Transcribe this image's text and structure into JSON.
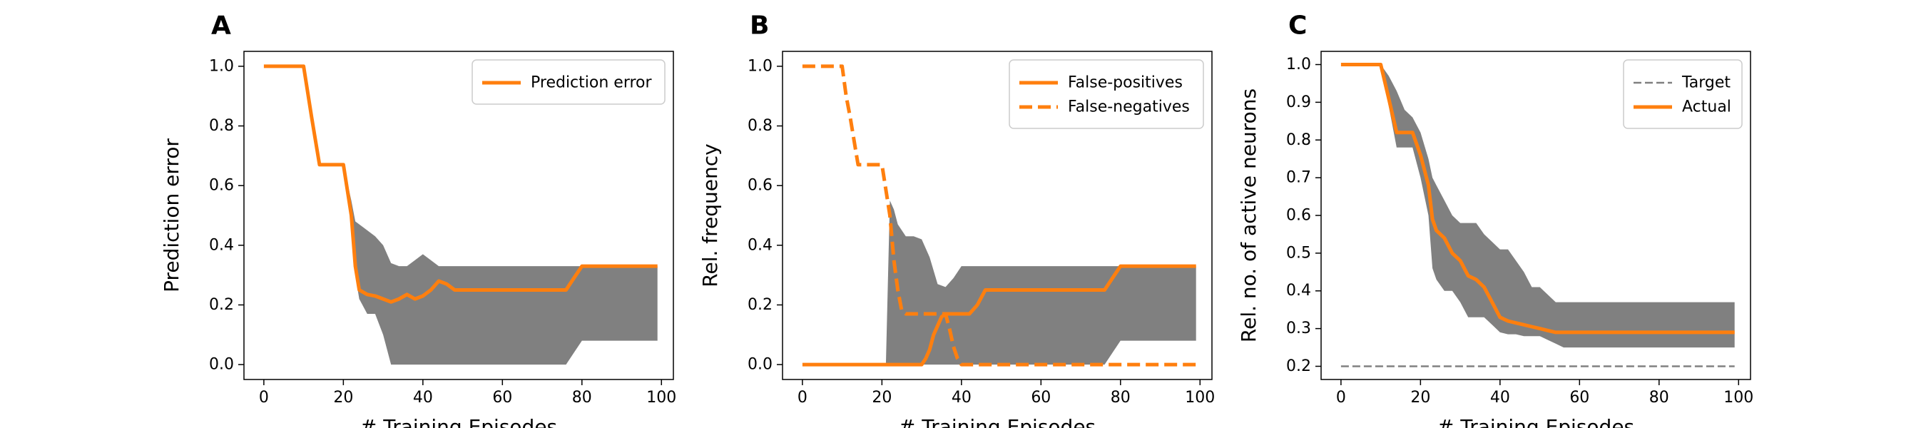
{
  "chart_data": [
    {
      "type": "line",
      "panel_label": "A",
      "title": "",
      "xlabel": "# Training Episodes",
      "ylabel": "Prediction error",
      "xlim": [
        -5,
        103
      ],
      "ylim": [
        -0.05,
        1.05
      ],
      "xticks": [
        0,
        20,
        40,
        60,
        80,
        100
      ],
      "yticks": [
        0.0,
        0.2,
        0.4,
        0.6,
        0.8,
        1.0
      ],
      "ytick_format": 1,
      "legend_position": "upper-right",
      "band": {
        "color": "#808080",
        "x": [
          0,
          10,
          12,
          14,
          16,
          18,
          20,
          22,
          23,
          24,
          26,
          28,
          30,
          32,
          34,
          36,
          38,
          40,
          42,
          44,
          46,
          48,
          50,
          76,
          78,
          80,
          99
        ],
        "upper": [
          1.0,
          1.0,
          0.83,
          0.67,
          0.67,
          0.67,
          0.67,
          0.55,
          0.48,
          0.47,
          0.45,
          0.43,
          0.4,
          0.34,
          0.33,
          0.33,
          0.35,
          0.37,
          0.35,
          0.33,
          0.33,
          0.33,
          0.33,
          0.33,
          0.33,
          0.33,
          0.33
        ],
        "lower": [
          1.0,
          1.0,
          0.83,
          0.67,
          0.67,
          0.67,
          0.67,
          0.5,
          0.3,
          0.22,
          0.17,
          0.17,
          0.1,
          0.0,
          0.0,
          0.0,
          0.0,
          0.0,
          0.0,
          0.0,
          0.0,
          0.0,
          0.0,
          0.0,
          0.04,
          0.08,
          0.08
        ]
      },
      "series": [
        {
          "name": "Prediction error",
          "color": "#ff7f0e",
          "style": "solid",
          "x": [
            0,
            10,
            12,
            14,
            16,
            18,
            20,
            22,
            23,
            24,
            26,
            28,
            30,
            32,
            34,
            36,
            38,
            40,
            42,
            44,
            46,
            48,
            50,
            60,
            70,
            76,
            78,
            80,
            99
          ],
          "y": [
            1.0,
            1.0,
            0.83,
            0.67,
            0.67,
            0.67,
            0.67,
            0.5,
            0.33,
            0.25,
            0.235,
            0.23,
            0.22,
            0.21,
            0.22,
            0.235,
            0.22,
            0.23,
            0.25,
            0.28,
            0.27,
            0.25,
            0.25,
            0.25,
            0.25,
            0.25,
            0.29,
            0.33,
            0.33
          ]
        }
      ]
    },
    {
      "type": "line",
      "panel_label": "B",
      "title": "",
      "xlabel": "# Training Episodes",
      "ylabel": "Rel. frequency",
      "xlim": [
        -5,
        103
      ],
      "ylim": [
        -0.05,
        1.05
      ],
      "xticks": [
        0,
        20,
        40,
        60,
        80,
        100
      ],
      "yticks": [
        0.0,
        0.2,
        0.4,
        0.6,
        0.8,
        1.0
      ],
      "ytick_format": 1,
      "legend_position": "upper-right",
      "band": {
        "color": "#808080",
        "x": [
          0,
          21,
          22,
          23,
          24,
          26,
          28,
          30,
          32,
          34,
          36,
          38,
          40,
          42,
          46,
          50,
          76,
          78,
          80,
          99
        ],
        "upper": [
          0.0,
          0.0,
          0.55,
          0.52,
          0.47,
          0.43,
          0.43,
          0.42,
          0.36,
          0.27,
          0.26,
          0.29,
          0.33,
          0.33,
          0.33,
          0.33,
          0.33,
          0.33,
          0.33,
          0.33
        ],
        "lower": [
          0.0,
          0.0,
          0.0,
          0.0,
          0.0,
          0.0,
          0.0,
          0.0,
          0.0,
          0.0,
          0.0,
          0.0,
          0.0,
          0.0,
          0.0,
          0.0,
          0.0,
          0.04,
          0.08,
          0.08
        ]
      },
      "series": [
        {
          "name": "False-positives",
          "color": "#ff7f0e",
          "style": "solid",
          "x": [
            0,
            30,
            31,
            32,
            33,
            34,
            35,
            36,
            37,
            38,
            40,
            42,
            44,
            46,
            50,
            60,
            76,
            78,
            80,
            99
          ],
          "y": [
            0.0,
            0.0,
            0.02,
            0.05,
            0.1,
            0.13,
            0.16,
            0.17,
            0.17,
            0.17,
            0.17,
            0.17,
            0.2,
            0.25,
            0.25,
            0.25,
            0.25,
            0.29,
            0.33,
            0.33
          ]
        },
        {
          "name": "False-negatives",
          "color": "#ff7f0e",
          "style": "dashed",
          "x": [
            0,
            10,
            11,
            12,
            14,
            16,
            18,
            20,
            22,
            23,
            24,
            25,
            26,
            28,
            30,
            34,
            36,
            37,
            38,
            39,
            40,
            50,
            99
          ],
          "y": [
            1.0,
            1.0,
            0.9,
            0.83,
            0.67,
            0.67,
            0.67,
            0.67,
            0.5,
            0.35,
            0.25,
            0.18,
            0.17,
            0.17,
            0.17,
            0.17,
            0.17,
            0.12,
            0.06,
            0.02,
            0.0,
            0.0,
            0.0
          ]
        }
      ]
    },
    {
      "type": "line",
      "panel_label": "C",
      "title": "",
      "xlabel": "# Training Episodes",
      "ylabel": "Rel. no. of active neurons",
      "xlim": [
        -5,
        103
      ],
      "ylim": [
        0.165,
        1.035
      ],
      "xticks": [
        0,
        20,
        40,
        60,
        80,
        100
      ],
      "yticks": [
        0.2,
        0.3,
        0.4,
        0.5,
        0.6,
        0.7,
        0.8,
        0.9,
        1.0
      ],
      "ytick_format": 1,
      "legend_position": "upper-right",
      "band": {
        "color": "#808080",
        "x": [
          0,
          10,
          12,
          14,
          16,
          18,
          20,
          22,
          23,
          24,
          26,
          28,
          30,
          32,
          34,
          36,
          38,
          40,
          42,
          44,
          46,
          48,
          50,
          52,
          54,
          56,
          60,
          99
        ],
        "upper": [
          1.0,
          1.0,
          0.97,
          0.93,
          0.88,
          0.86,
          0.82,
          0.75,
          0.7,
          0.68,
          0.64,
          0.6,
          0.58,
          0.58,
          0.58,
          0.55,
          0.53,
          0.51,
          0.51,
          0.48,
          0.45,
          0.41,
          0.41,
          0.39,
          0.37,
          0.37,
          0.37,
          0.37
        ],
        "lower": [
          1.0,
          1.0,
          0.89,
          0.78,
          0.78,
          0.78,
          0.7,
          0.6,
          0.46,
          0.43,
          0.4,
          0.4,
          0.37,
          0.33,
          0.33,
          0.33,
          0.31,
          0.29,
          0.285,
          0.285,
          0.28,
          0.28,
          0.28,
          0.27,
          0.26,
          0.25,
          0.25,
          0.25
        ]
      },
      "series": [
        {
          "name": "Target",
          "color": "#808080",
          "style": "dashed",
          "x": [
            0,
            99
          ],
          "y": [
            0.2,
            0.2
          ]
        },
        {
          "name": "Actual",
          "color": "#ff7f0e",
          "style": "solid",
          "x": [
            0,
            10,
            12,
            14,
            16,
            18,
            20,
            22,
            23,
            24,
            26,
            28,
            30,
            32,
            34,
            36,
            38,
            40,
            42,
            44,
            46,
            48,
            50,
            52,
            54,
            56,
            60,
            99
          ],
          "y": [
            1.0,
            1.0,
            0.91,
            0.82,
            0.82,
            0.82,
            0.76,
            0.68,
            0.59,
            0.56,
            0.54,
            0.5,
            0.48,
            0.44,
            0.43,
            0.41,
            0.37,
            0.33,
            0.32,
            0.315,
            0.31,
            0.305,
            0.3,
            0.295,
            0.29,
            0.29,
            0.29,
            0.29
          ]
        }
      ]
    }
  ]
}
